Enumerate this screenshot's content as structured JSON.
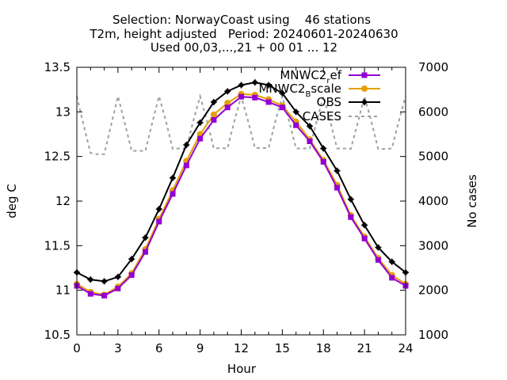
{
  "title_lines": [
    "Selection: NorwayCoast using    46 stations",
    "T2m, height adjusted   Period: 20240601-20240630",
    "Used 00,03,...,21 + 00 01 ... 12"
  ],
  "chart_data": {
    "type": "line",
    "xlabel": "Hour",
    "ylabel": "deg C",
    "y2label": "No cases",
    "xlim": [
      0,
      24
    ],
    "ylim": [
      10.5,
      13.5
    ],
    "y2lim": [
      1000,
      7000
    ],
    "x_ticks": [
      "0",
      "3",
      "6",
      "9",
      "12",
      "15",
      "18",
      "21",
      "24"
    ],
    "y_ticks": [
      "10.5",
      "11",
      "11.5",
      "12",
      "12.5",
      "13",
      "13.5"
    ],
    "y2_ticks": [
      "1000",
      "2000",
      "3000",
      "4000",
      "5000",
      "6000",
      "7000"
    ],
    "legend_position": "top-right",
    "grid": false,
    "legend": [
      {
        "main": "MNWC2",
        "sub": "r",
        "tail": "ef",
        "color": "#9400d3",
        "marker": "square"
      },
      {
        "main": "MNWC2",
        "sub": "B",
        "tail": "scale",
        "color": "#e69f00",
        "marker": "circle"
      },
      {
        "main": "OBS",
        "sub": "",
        "tail": "",
        "color": "#000000",
        "marker": "plus"
      },
      {
        "main": "CASES",
        "sub": "",
        "tail": "",
        "color": "#a0a0a0",
        "marker": "none"
      }
    ],
    "x": [
      0,
      1,
      2,
      3,
      4,
      5,
      6,
      7,
      8,
      9,
      10,
      11,
      12,
      13,
      14,
      15,
      16,
      17,
      18,
      19,
      20,
      21,
      22,
      23,
      24
    ],
    "series": [
      {
        "name": "MNWC2ref",
        "axis": "y",
        "color": "#9400d3",
        "values": [
          11.05,
          10.96,
          10.94,
          11.02,
          11.17,
          11.43,
          11.77,
          12.08,
          12.4,
          12.7,
          12.91,
          13.05,
          13.17,
          13.16,
          13.11,
          13.05,
          12.85,
          12.67,
          12.44,
          12.15,
          11.82,
          11.58,
          11.34,
          11.14,
          11.05
        ]
      },
      {
        "name": "MNWC2Bscale",
        "axis": "y",
        "color": "#e69f00",
        "values": [
          11.07,
          10.98,
          10.95,
          11.04,
          11.19,
          11.46,
          11.8,
          12.12,
          12.45,
          12.75,
          12.97,
          13.1,
          13.2,
          13.19,
          13.14,
          13.07,
          12.89,
          12.69,
          12.46,
          12.18,
          11.84,
          11.6,
          11.36,
          11.17,
          11.07
        ]
      },
      {
        "name": "OBS",
        "axis": "y",
        "color": "#000000",
        "values": [
          11.2,
          11.12,
          11.1,
          11.15,
          11.35,
          11.59,
          11.91,
          12.26,
          12.63,
          12.88,
          13.11,
          13.23,
          13.3,
          13.33,
          13.3,
          13.21,
          13.0,
          12.84,
          12.59,
          12.34,
          12.02,
          11.73,
          11.48,
          11.32,
          11.2
        ]
      },
      {
        "name": "CASES",
        "axis": "y2",
        "color": "#a0a0a0",
        "x": [
          0,
          0.5,
          1,
          1.5,
          2,
          2.5,
          3,
          3.5,
          4,
          4.5,
          5,
          5.5,
          6,
          6.5,
          7,
          7.5,
          8,
          8.5,
          9,
          9.5,
          10,
          10.5,
          11,
          11.5,
          12,
          12.5,
          13,
          13.5,
          14,
          14.5,
          15,
          15.5,
          16,
          16.5,
          17,
          17.5,
          18,
          18.5,
          19,
          19.5,
          20,
          20.5,
          21,
          21.5,
          22,
          22.5,
          23,
          23.5,
          24
        ],
        "values": [
          6350,
          5700,
          5080,
          5050,
          5050,
          5700,
          6350,
          5750,
          5120,
          5130,
          5120,
          5750,
          6350,
          5800,
          5170,
          5180,
          5180,
          5800,
          6350,
          5800,
          5180,
          5190,
          5180,
          5800,
          6350,
          5800,
          5190,
          5190,
          5190,
          5800,
          6350,
          5790,
          5180,
          5180,
          5180,
          5780,
          6350,
          5790,
          5180,
          5180,
          5170,
          5750,
          6350,
          5780,
          5170,
          5170,
          5180,
          5790,
          6350
        ]
      }
    ]
  }
}
